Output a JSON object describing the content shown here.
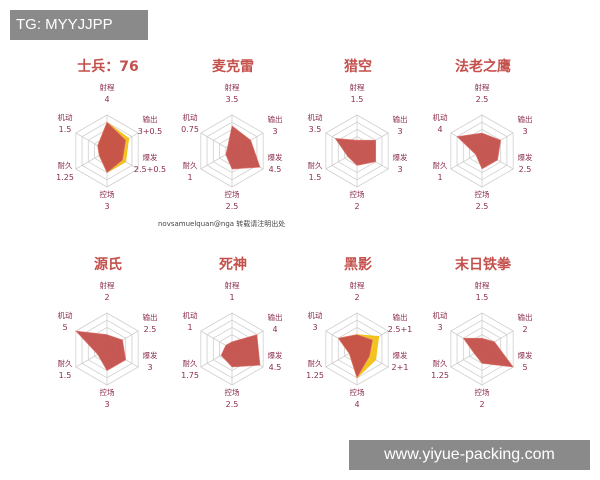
{
  "overlays": {
    "tg_label": "TG: MYYJJPP",
    "site_label": "www.yiyue-packing.com"
  },
  "credit": "novsamuelquan@nga 转载请注明出处",
  "colors": {
    "base_fill": "#c4504c",
    "bonus_fill": "#f2c014",
    "title": "#c4504c",
    "label": "#8b2d4a",
    "grid": "#cfcfcf"
  },
  "chart_data": [
    {
      "type": "radar",
      "title": "士兵：76",
      "axes": [
        "射程",
        "输出",
        "爆发",
        "控场",
        "耐久",
        "机动"
      ],
      "value_labels": [
        "4",
        "3+0.5",
        "2.5+0.5",
        "3",
        "1.25",
        "1.5"
      ],
      "series": [
        {
          "values": [
            4,
            3,
            2.5,
            3,
            1.25,
            1.5
          ]
        },
        {
          "values": [
            4,
            3.5,
            3,
            3,
            1.25,
            1.5
          ]
        }
      ],
      "rlim": [
        0,
        5
      ]
    },
    {
      "type": "radar",
      "title": "麦克雷",
      "axes": [
        "射程",
        "输出",
        "爆发",
        "控场",
        "耐久",
        "机动"
      ],
      "value_labels": [
        "3.5",
        "3",
        "4.5",
        "2.5",
        "1",
        "0.75"
      ],
      "series": [
        {
          "values": [
            3.5,
            3,
            4.5,
            2.5,
            1,
            0.75
          ]
        }
      ],
      "rlim": [
        0,
        5
      ]
    },
    {
      "type": "radar",
      "title": "猎空",
      "axes": [
        "射程",
        "输出",
        "爆发",
        "控场",
        "耐久",
        "机动"
      ],
      "value_labels": [
        "1.5",
        "3",
        "3",
        "2",
        "1.5",
        "3.5"
      ],
      "series": [
        {
          "values": [
            1.5,
            3,
            3,
            2,
            1.5,
            3.5
          ]
        }
      ],
      "rlim": [
        0,
        5
      ]
    },
    {
      "type": "radar",
      "title": "法老之鹰",
      "axes": [
        "射程",
        "输出",
        "爆发",
        "控场",
        "耐久",
        "机动"
      ],
      "value_labels": [
        "2.5",
        "3",
        "2.5",
        "2.5",
        "1",
        "4"
      ],
      "series": [
        {
          "values": [
            2.5,
            3,
            2.5,
            2.5,
            1,
            4
          ]
        }
      ],
      "rlim": [
        0,
        5
      ]
    },
    {
      "type": "radar",
      "title": "源氏",
      "axes": [
        "射程",
        "输出",
        "爆发",
        "控场",
        "耐久",
        "机动"
      ],
      "value_labels": [
        "2",
        "2.5",
        "3",
        "3",
        "1.5",
        "5"
      ],
      "series": [
        {
          "values": [
            2,
            2.5,
            3,
            3,
            1.5,
            5
          ]
        }
      ],
      "rlim": [
        0,
        5
      ]
    },
    {
      "type": "radar",
      "title": "死神",
      "axes": [
        "射程",
        "输出",
        "爆发",
        "控场",
        "耐久",
        "机动"
      ],
      "value_labels": [
        "1",
        "4",
        "4.5",
        "2.5",
        "1.75",
        "1"
      ],
      "series": [
        {
          "values": [
            1,
            4,
            4.5,
            2.5,
            1.75,
            1
          ]
        }
      ],
      "rlim": [
        0,
        5
      ]
    },
    {
      "type": "radar",
      "title": "黑影",
      "axes": [
        "射程",
        "输出",
        "爆发",
        "控场",
        "耐久",
        "机动"
      ],
      "value_labels": [
        "2",
        "2.5+1",
        "2+1",
        "4",
        "1.25",
        "3"
      ],
      "series": [
        {
          "values": [
            2,
            2.5,
            2,
            4,
            1.25,
            3
          ]
        },
        {
          "values": [
            2,
            3.5,
            3,
            4,
            1.25,
            3
          ]
        }
      ],
      "rlim": [
        0,
        5
      ]
    },
    {
      "type": "radar",
      "title": "末日铁拳",
      "axes": [
        "射程",
        "输出",
        "爆发",
        "控场",
        "耐久",
        "机动"
      ],
      "value_labels": [
        "1.5",
        "2",
        "5",
        "2",
        "1.25",
        "3"
      ],
      "series": [
        {
          "values": [
            1.5,
            2,
            5,
            2,
            1.25,
            3
          ]
        }
      ],
      "rlim": [
        0,
        5
      ]
    }
  ]
}
